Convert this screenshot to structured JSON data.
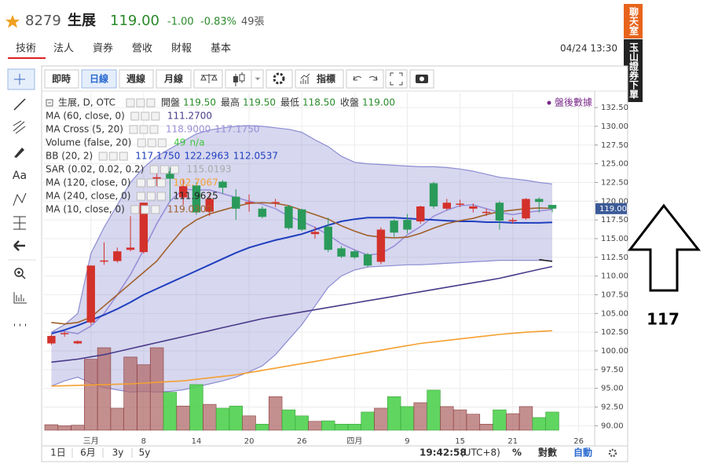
{
  "header": {
    "code": "8279",
    "name": "生展",
    "price": "119.00",
    "change": "-1.00",
    "change_pct": "-0.83%",
    "volume": "49張"
  },
  "tabs": [
    "技術",
    "法人",
    "資券",
    "營收",
    "財報",
    "基本"
  ],
  "datetime": "04/24 13:30",
  "side_tabs": [
    "聊天室",
    "玉山證券下單"
  ],
  "toolbar": [
    "即時",
    "日線",
    "週線",
    "月線",
    "指標"
  ],
  "tool_text": "Aa",
  "bottom": {
    "ranges": [
      "1日",
      "6月",
      "3y",
      "5y"
    ],
    "time": "19:42:58",
    "timezone": "(UTC+8)",
    "options": [
      "%",
      "對數",
      "自動"
    ]
  },
  "annotation": "117",
  "chart_data": {
    "type": "candlestick",
    "symbol": "生展, D, OTC",
    "ohlc_readout": [
      {
        "label": "開盤",
        "value": "119.50"
      },
      {
        "label": "最高",
        "value": "119.50"
      },
      {
        "label": "最低",
        "value": "118.50"
      },
      {
        "label": "收盤",
        "value": "119.00"
      }
    ],
    "after_hours": "盤後數據",
    "categories": [
      null,
      null,
      null,
      "三月",
      null,
      null,
      null,
      "8",
      null,
      null,
      null,
      "14",
      null,
      null,
      null,
      "20",
      null,
      null,
      null,
      "26",
      null,
      null,
      null,
      "四月",
      null,
      null,
      null,
      "9",
      null,
      null,
      null,
      "15",
      null,
      null,
      null,
      "21",
      null,
      null,
      null,
      null,
      "26"
    ],
    "open": [
      101.0,
      102.3,
      101.0,
      103.8,
      111.9,
      112.0,
      113.5,
      113.2,
      123.0,
      124.0,
      120.5,
      122.1,
      118.6,
      122.6,
      120.6,
      119.8,
      119.0,
      119.8,
      119.3,
      118.9,
      115.6,
      116.6,
      113.7,
      113.3,
      112.9,
      111.9,
      117.4,
      117.5,
      117.3,
      122.4,
      119.0,
      119.6,
      119.0,
      118.5,
      119.8,
      117.4,
      117.7,
      120.3,
      119.5,
      null,
      null
    ],
    "high": [
      102.2,
      102.6,
      101.4,
      111.4,
      114.5,
      113.8,
      118.0,
      119.8,
      124.0,
      124.5,
      123.0,
      122.5,
      121.0,
      122.8,
      121.6,
      120.9,
      119.3,
      120.3,
      119.5,
      119.0,
      116.6,
      117.8,
      114.0,
      113.5,
      113.1,
      116.5,
      117.6,
      118.3,
      119.4,
      122.6,
      120.3,
      120.2,
      119.7,
      119.0,
      120.0,
      117.8,
      120.4,
      120.5,
      119.5,
      null,
      null
    ],
    "low": [
      100.8,
      101.9,
      100.9,
      103.5,
      111.5,
      111.8,
      113.3,
      113.0,
      122.0,
      120.0,
      119.5,
      118.2,
      118.0,
      121.0,
      117.5,
      118.6,
      117.7,
      119.2,
      116.2,
      116.0,
      115.0,
      113.2,
      112.4,
      112.3,
      111.2,
      111.6,
      115.2,
      115.7,
      117.0,
      119.0,
      118.8,
      119.2,
      118.5,
      118.0,
      116.2,
      117.0,
      117.5,
      118.5,
      118.5,
      null,
      null
    ],
    "close": [
      102.0,
      102.3,
      101.3,
      111.4,
      112.0,
      113.3,
      113.8,
      119.8,
      123.2,
      123.0,
      122.0,
      118.5,
      120.3,
      121.8,
      119.0,
      119.8,
      117.9,
      119.8,
      116.4,
      116.2,
      115.9,
      113.5,
      112.6,
      112.5,
      111.4,
      116.2,
      115.8,
      116.2,
      119.3,
      119.3,
      119.8,
      119.6,
      119.3,
      118.5,
      117.4,
      117.4,
      120.3,
      119.9,
      119.0,
      null,
      null
    ],
    "volume": [
      100,
      80,
      90,
      1290,
      1500,
      400,
      1330,
      1190,
      1500,
      690,
      440,
      830,
      470,
      400,
      440,
      260,
      110,
      610,
      370,
      260,
      160,
      170,
      110,
      110,
      330,
      400,
      610,
      430,
      500,
      730,
      430,
      370,
      290,
      110,
      370,
      300,
      430,
      230,
      330,
      null,
      null
    ],
    "candle_colors": {
      "up": "#d3312b",
      "down": "#2a9a5a"
    },
    "volume_colors": {
      "up": "#b06a6a",
      "down": "#4fd24f"
    },
    "indicators": [
      {
        "name": "MA (60, close, 0)",
        "readings": [
          "111.2700"
        ],
        "color": "#4a3a8a",
        "values": [
          98.5,
          98.7,
          98.9,
          99.2,
          99.5,
          99.9,
          100.3,
          100.7,
          101.1,
          101.5,
          101.9,
          102.3,
          102.7,
          103.1,
          103.5,
          103.9,
          104.3,
          104.6,
          104.9,
          105.2,
          105.5,
          105.8,
          106.1,
          106.4,
          106.7,
          107.0,
          107.3,
          107.6,
          107.9,
          108.2,
          108.5,
          108.8,
          109.1,
          109.4,
          109.7,
          110.1,
          110.5,
          110.9,
          111.27,
          null,
          null
        ]
      },
      {
        "name": "MA Cross (5, 20)",
        "readings": [
          "118.9000",
          "117.1750"
        ],
        "color": "#9a8fd8",
        "values": [
          102.5,
          102.6,
          102.3,
          103.3,
          105.0,
          107.5,
          110.2,
          113.5,
          117.0,
          120.0,
          121.6,
          121.5,
          121.5,
          121.0,
          120.5,
          120.0,
          119.6,
          119.0,
          118.0,
          117.3,
          116.5,
          115.5,
          114.3,
          113.5,
          112.8,
          113.0,
          114.0,
          115.5,
          116.6,
          118.0,
          118.8,
          119.4,
          119.5,
          119.0,
          118.5,
          118.2,
          118.5,
          118.7,
          118.9,
          null,
          null
        ]
      },
      {
        "name": "Volume (false, 20)",
        "readings": [
          "49",
          "n/a"
        ],
        "color": "#3ec43e"
      },
      {
        "name": "BB (20, 2)",
        "readings": [
          "117.1750",
          "122.2963",
          "112.0537"
        ],
        "color": "#1f3fbf",
        "values": [
          102.3,
          102.8,
          103.4,
          104.1,
          104.8,
          105.6,
          106.5,
          107.5,
          108.3,
          109.1,
          109.9,
          110.7,
          111.5,
          112.3,
          113.1,
          113.8,
          114.3,
          114.8,
          115.2,
          115.6,
          116.2,
          116.8,
          117.3,
          117.6,
          117.8,
          117.8,
          117.8,
          117.7,
          117.6,
          117.5,
          117.4,
          117.3,
          117.3,
          117.2,
          117.2,
          117.1,
          117.1,
          117.1,
          117.175,
          null,
          null
        ],
        "upper": [
          102.5,
          103.5,
          105.0,
          113.0,
          116.5,
          119.5,
          122.5,
          124.5,
          126.0,
          127.0,
          128.0,
          129.0,
          129.5,
          129.8,
          130.0,
          130.1,
          130.0,
          129.8,
          129.6,
          129.2,
          128.2,
          127.3,
          126.0,
          125.2,
          125.0,
          124.9,
          124.8,
          124.7,
          124.6,
          124.6,
          124.5,
          124.3,
          124.0,
          123.6,
          123.2,
          123.0,
          122.8,
          122.5,
          122.3,
          null,
          null
        ],
        "lower": [
          95.3,
          96.0,
          96.5,
          95.7,
          95.1,
          94.8,
          94.5,
          94.6,
          94.5,
          94.6,
          94.8,
          95.2,
          95.6,
          96.0,
          96.5,
          97.2,
          98.0,
          99.5,
          101.5,
          103.5,
          106.0,
          108.5,
          110.0,
          110.8,
          111.2,
          111.3,
          111.4,
          111.5,
          111.5,
          111.6,
          111.7,
          111.8,
          111.9,
          112.0,
          112.1,
          112.1,
          112.1,
          112.1,
          112.05,
          null,
          null
        ],
        "band_color": "#8c8cd2"
      },
      {
        "name": "SAR (0.02, 0.02, 0.2)",
        "readings": [
          "115.0193"
        ],
        "color": "#aaaaaa"
      },
      {
        "name": "MA (120, close, 0)",
        "readings": [
          "102.7067"
        ],
        "color": "#f5a030",
        "values": [
          95.3,
          95.35,
          95.4,
          95.45,
          95.5,
          95.55,
          95.6,
          95.7,
          95.8,
          95.9,
          96.0,
          96.2,
          96.4,
          96.6,
          96.8,
          97.1,
          97.4,
          97.7,
          98.0,
          98.3,
          98.6,
          98.9,
          99.2,
          99.5,
          99.8,
          100.1,
          100.4,
          100.7,
          101.0,
          101.2,
          101.4,
          101.6,
          101.8,
          102.0,
          102.2,
          102.35,
          102.5,
          102.6,
          102.7,
          null,
          null
        ]
      },
      {
        "name": "MA (240, close, 0)",
        "readings": [
          "111.9625"
        ],
        "color": "#222222",
        "values": [
          null,
          null,
          null,
          null,
          null,
          null,
          null,
          null,
          null,
          null,
          null,
          null,
          null,
          null,
          null,
          null,
          null,
          null,
          null,
          null,
          null,
          null,
          null,
          null,
          null,
          null,
          null,
          null,
          null,
          null,
          null,
          null,
          null,
          null,
          null,
          null,
          null,
          112.2,
          111.96,
          null,
          null
        ]
      },
      {
        "name": "MA (10, close, 0)",
        "readings": [
          "119.0300"
        ],
        "color": "#a0602a",
        "values": [
          103.8,
          103.6,
          103.8,
          104.5,
          106.0,
          107.5,
          109.0,
          110.5,
          112.0,
          114.2,
          116.3,
          117.5,
          118.3,
          118.8,
          119.3,
          119.7,
          119.8,
          119.7,
          119.4,
          118.8,
          118.2,
          117.6,
          116.7,
          116.0,
          115.4,
          115.2,
          115.1,
          115.2,
          115.7,
          116.4,
          117.0,
          117.4,
          117.7,
          118.2,
          118.6,
          118.8,
          119.0,
          119.1,
          119.03,
          null,
          null
        ]
      }
    ],
    "ylim": [
      89.2,
      134.5
    ],
    "yticks": [
      {
        "value": 90,
        "label": "90.00"
      },
      {
        "value": 92.5,
        "label": "92.50"
      },
      {
        "value": 95,
        "label": "95.00"
      },
      {
        "value": 97.5,
        "label": "97.50"
      },
      {
        "value": 100,
        "label": "100.00"
      },
      {
        "value": 102.5,
        "label": "102.50"
      },
      {
        "value": 105,
        "label": "105.00"
      },
      {
        "value": 107.5,
        "label": "107.50"
      },
      {
        "value": 110,
        "label": "110.00"
      },
      {
        "value": 112.5,
        "label": "112.50"
      },
      {
        "value": 115,
        "label": "115.00"
      },
      {
        "value": 117.5,
        "label": "117.50"
      },
      {
        "value": 120,
        "label": "120.00"
      },
      {
        "value": 122.5,
        "label": "122.50"
      },
      {
        "value": 125,
        "label": "125.00"
      },
      {
        "value": 127.5,
        "label": "127.50"
      },
      {
        "value": 130,
        "label": "130.00"
      },
      {
        "value": 132.5,
        "label": "132.50"
      }
    ],
    "price_tag": {
      "value": 119,
      "label": "119.00"
    },
    "grid": true
  }
}
